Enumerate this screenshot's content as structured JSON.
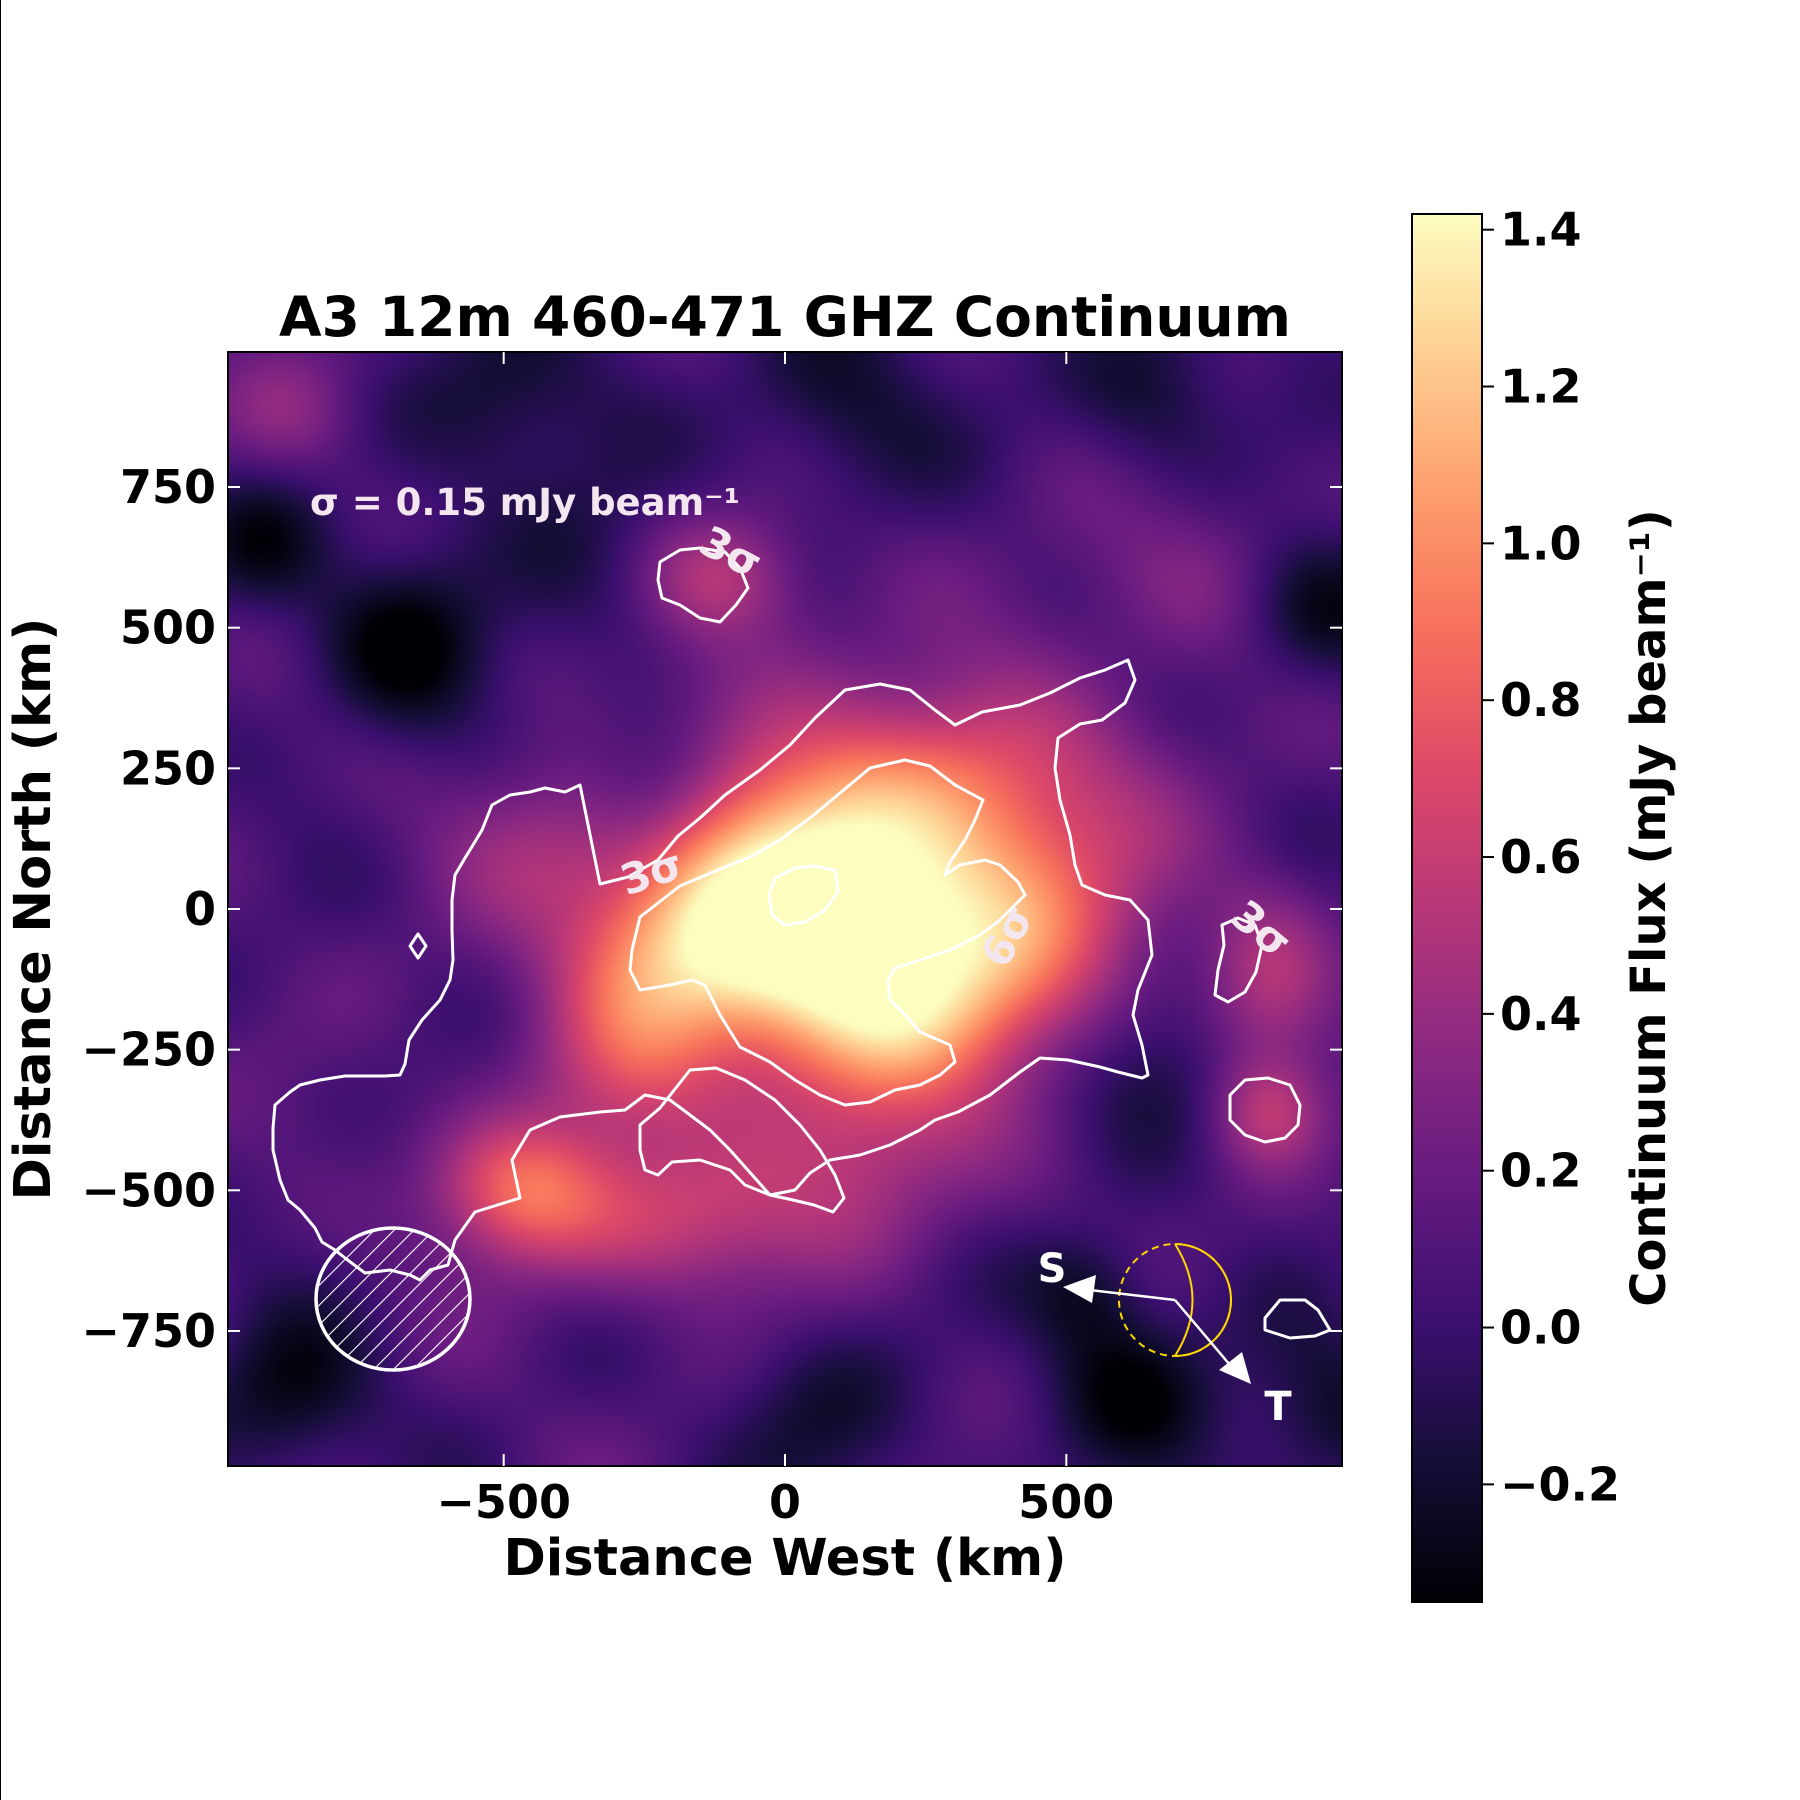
{
  "chart_data": {
    "type": "heatmap",
    "title": "A3 12m 460-471 GHZ Continuum",
    "xlabel": "Distance West (km)",
    "ylabel": "Distance North (km)",
    "xlim": [
      -990,
      990
    ],
    "ylim": [
      -990,
      990
    ],
    "xticks": [
      {
        "value": -500,
        "label": "−500"
      },
      {
        "value": 0,
        "label": "0"
      },
      {
        "value": 500,
        "label": "500"
      }
    ],
    "yticks": [
      {
        "value": 750,
        "label": "750"
      },
      {
        "value": 500,
        "label": "500"
      },
      {
        "value": 250,
        "label": "250"
      },
      {
        "value": 0,
        "label": "0"
      },
      {
        "value": -250,
        "label": "−250"
      },
      {
        "value": -500,
        "label": "−500"
      },
      {
        "value": -750,
        "label": "−750"
      }
    ],
    "colorbar": {
      "label": "Continuum Flux (mJy beam⁻¹)",
      "range": [
        -0.35,
        1.42
      ],
      "colormap": "magma",
      "ticks": [
        {
          "value": 1.4,
          "label": "1.4"
        },
        {
          "value": 1.2,
          "label": "1.2"
        },
        {
          "value": 1.0,
          "label": "1.0"
        },
        {
          "value": 0.8,
          "label": "0.8"
        },
        {
          "value": 0.6,
          "label": "0.6"
        },
        {
          "value": 0.4,
          "label": "0.4"
        },
        {
          "value": 0.2,
          "label": "0.2"
        },
        {
          "value": 0.0,
          "label": "0.0"
        },
        {
          "value": -0.2,
          "label": "−0.2"
        }
      ],
      "stops": [
        "#000004",
        "#140e36",
        "#3b0f70",
        "#641a80",
        "#8c2981",
        "#b73779",
        "#de4968",
        "#f7705c",
        "#fe9f6d",
        "#fecf92",
        "#fcfdbf"
      ]
    },
    "annotations": {
      "sigma_note": "σ = 0.15 mJy beam⁻¹",
      "contour_3sigma": "3σ",
      "contour_6sigma": "6σ",
      "direction_s": "S",
      "direction_t": "T"
    },
    "contour_color": "#ffffff",
    "limb_color": "#ffd700",
    "emission_blobs": [
      {
        "x": 60,
        "y": 50,
        "sx": 230,
        "sy": 200,
        "amp": 1.28
      },
      {
        "x": 170,
        "y": -160,
        "sx": 170,
        "sy": 140,
        "amp": 0.72
      },
      {
        "x": -180,
        "y": -60,
        "sx": 150,
        "sy": 120,
        "amp": 0.6
      },
      {
        "x": 420,
        "y": -40,
        "sx": 160,
        "sy": 150,
        "amp": 0.5
      },
      {
        "x": 420,
        "y": 220,
        "sx": 180,
        "sy": 130,
        "amp": 0.38
      },
      {
        "x": -470,
        "y": -500,
        "sx": 110,
        "sy": 90,
        "amp": 0.72
      },
      {
        "x": -180,
        "y": -560,
        "sx": 160,
        "sy": 100,
        "amp": 0.5
      },
      {
        "x": -280,
        "y": -280,
        "sx": 120,
        "sy": 120,
        "amp": 0.42
      },
      {
        "x": 140,
        "y": -450,
        "sx": 140,
        "sy": 110,
        "amp": 0.35
      },
      {
        "x": -110,
        "y": 590,
        "sx": 100,
        "sy": 80,
        "amp": 0.45
      },
      {
        "x": 860,
        "y": -360,
        "sx": 70,
        "sy": 70,
        "amp": 0.45
      },
      {
        "x": 860,
        "y": -110,
        "sx": 80,
        "sy": 120,
        "amp": 0.38
      },
      {
        "x": -880,
        "y": 890,
        "sx": 90,
        "sy": 90,
        "amp": 0.3
      },
      {
        "x": -420,
        "y": 130,
        "sx": 130,
        "sy": 110,
        "amp": 0.22
      },
      {
        "x": 700,
        "y": 590,
        "sx": 160,
        "sy": 120,
        "amp": 0.2
      }
    ],
    "dark_spots": [
      {
        "x": -680,
        "y": 460,
        "s": 110,
        "amp": -0.42
      },
      {
        "x": -230,
        "y": 220,
        "s": 100,
        "amp": -0.4
      },
      {
        "x": 950,
        "y": 540,
        "s": 100,
        "amp": -0.4
      },
      {
        "x": -930,
        "y": 640,
        "s": 90,
        "amp": -0.35
      },
      {
        "x": -520,
        "y": 900,
        "s": 130,
        "amp": -0.32
      },
      {
        "x": 90,
        "y": 900,
        "s": 130,
        "amp": -0.3
      },
      {
        "x": 650,
        "y": 920,
        "s": 110,
        "amp": -0.3
      },
      {
        "x": 620,
        "y": -860,
        "s": 110,
        "amp": -0.38
      },
      {
        "x": -880,
        "y": -870,
        "s": 110,
        "amp": -0.38
      },
      {
        "x": 60,
        "y": -910,
        "s": 120,
        "amp": -0.25
      },
      {
        "x": 540,
        "y": -680,
        "s": 80,
        "amp": -0.3
      },
      {
        "x": 960,
        "y": -900,
        "s": 110,
        "amp": -0.3
      },
      {
        "x": -330,
        "y": 600,
        "s": 110,
        "amp": -0.22
      },
      {
        "x": 660,
        "y": -300,
        "s": 100,
        "amp": -0.25
      }
    ]
  }
}
